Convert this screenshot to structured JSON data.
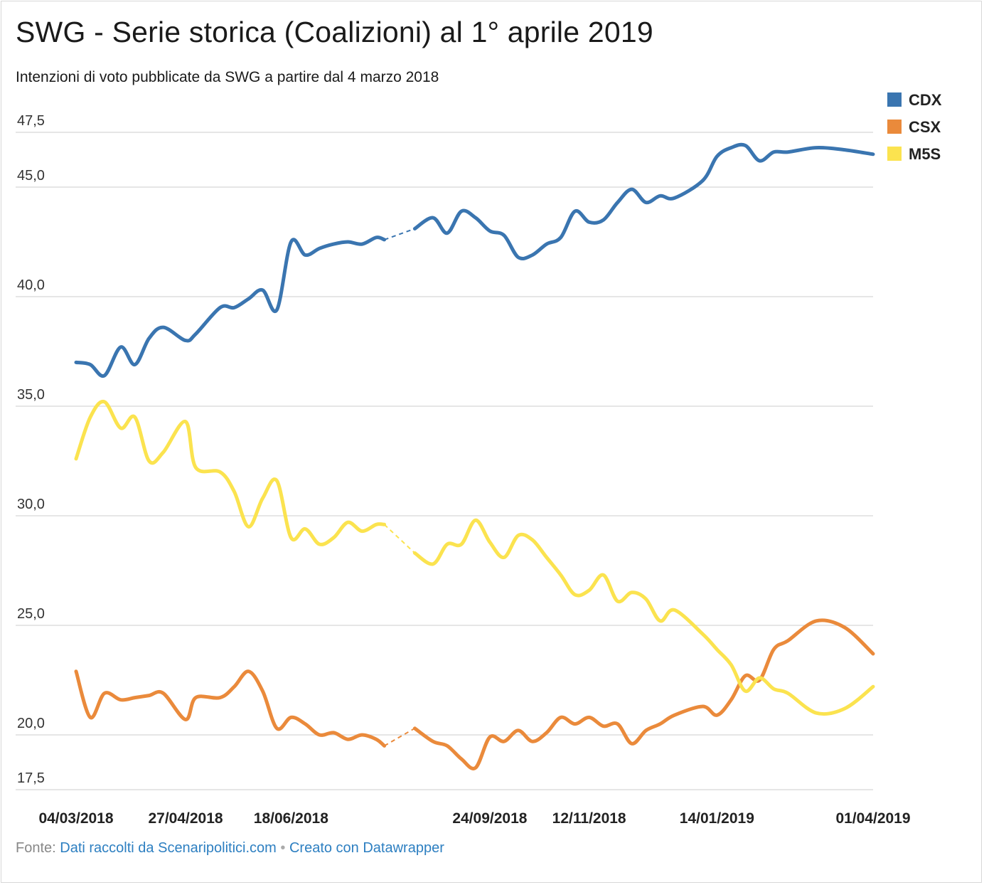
{
  "title": "SWG - Serie storica (Coalizioni) al 1° aprile 2019",
  "subtitle": "Intenzioni di voto pubblicate da SWG a partire dal 4 marzo 2018",
  "footer": {
    "prefix": "Fonte:",
    "source_link": "Dati raccolti da Scenaripolitici.com",
    "separator": "•",
    "tool_link": "Creato con Datawrapper"
  },
  "chart_data": {
    "type": "line",
    "title": "SWG - Serie storica (Coalizioni) al 1° aprile 2019",
    "ylim": [
      17.5,
      47.5
    ],
    "yticks": [
      17.5,
      20,
      25,
      30,
      35,
      40,
      45,
      47.5
    ],
    "ytick_labels": [
      "17,5",
      "20,0",
      "25,0",
      "30,0",
      "35,0",
      "40,0",
      "45,0",
      "47,5"
    ],
    "grid": true,
    "legend_position": "top-right",
    "xlim": [
      "2018-03-04",
      "2019-04-01"
    ],
    "xticks": [
      {
        "date": "2018-03-04",
        "label": "04/03/2018"
      },
      {
        "date": "2018-04-27",
        "label": "27/04/2018"
      },
      {
        "date": "2018-06-18",
        "label": "18/06/2018"
      },
      {
        "date": "2018-09-24",
        "label": "24/09/2018"
      },
      {
        "date": "2018-11-12",
        "label": "12/11/2018"
      },
      {
        "date": "2019-01-14",
        "label": "14/01/2019"
      },
      {
        "date": "2019-04-01",
        "label": "01/04/2019"
      }
    ],
    "gap": {
      "from": "2018-08-03",
      "to": "2018-08-18",
      "style": "dashed"
    },
    "series": [
      {
        "name": "CDX",
        "color": "#3a75b0",
        "points": [
          [
            "2018-03-04",
            37.0
          ],
          [
            "2018-03-11",
            36.9
          ],
          [
            "2018-03-18",
            36.4
          ],
          [
            "2018-03-26",
            37.7
          ],
          [
            "2018-04-02",
            36.9
          ],
          [
            "2018-04-09",
            38.1
          ],
          [
            "2018-04-16",
            38.6
          ],
          [
            "2018-04-27",
            38.0
          ],
          [
            "2018-05-02",
            38.3
          ],
          [
            "2018-05-14",
            39.5
          ],
          [
            "2018-05-21",
            39.5
          ],
          [
            "2018-05-28",
            39.9
          ],
          [
            "2018-06-04",
            40.3
          ],
          [
            "2018-06-11",
            39.4
          ],
          [
            "2018-06-18",
            42.5
          ],
          [
            "2018-06-25",
            41.9
          ],
          [
            "2018-07-02",
            42.2
          ],
          [
            "2018-07-09",
            42.4
          ],
          [
            "2018-07-16",
            42.5
          ],
          [
            "2018-07-23",
            42.4
          ],
          [
            "2018-07-30",
            42.7
          ],
          [
            "2018-08-03",
            42.6
          ],
          [
            "2018-08-18",
            43.1
          ],
          [
            "2018-08-27",
            43.6
          ],
          [
            "2018-09-03",
            42.9
          ],
          [
            "2018-09-10",
            43.9
          ],
          [
            "2018-09-17",
            43.6
          ],
          [
            "2018-09-24",
            43.0
          ],
          [
            "2018-10-01",
            42.8
          ],
          [
            "2018-10-08",
            41.8
          ],
          [
            "2018-10-15",
            41.9
          ],
          [
            "2018-10-22",
            42.4
          ],
          [
            "2018-10-29",
            42.7
          ],
          [
            "2018-11-05",
            43.9
          ],
          [
            "2018-11-12",
            43.4
          ],
          [
            "2018-11-19",
            43.5
          ],
          [
            "2018-11-26",
            44.3
          ],
          [
            "2018-12-03",
            44.9
          ],
          [
            "2018-12-10",
            44.3
          ],
          [
            "2018-12-17",
            44.6
          ],
          [
            "2018-12-24",
            44.5
          ],
          [
            "2019-01-07",
            45.3
          ],
          [
            "2019-01-14",
            46.4
          ],
          [
            "2019-01-21",
            46.8
          ],
          [
            "2019-01-28",
            46.9
          ],
          [
            "2019-02-04",
            46.2
          ],
          [
            "2019-02-11",
            46.6
          ],
          [
            "2019-02-18",
            46.6
          ],
          [
            "2019-03-04",
            46.8
          ],
          [
            "2019-03-18",
            46.7
          ],
          [
            "2019-04-01",
            46.5
          ]
        ]
      },
      {
        "name": "CSX",
        "color": "#ea8a3b",
        "points": [
          [
            "2018-03-04",
            22.9
          ],
          [
            "2018-03-11",
            20.8
          ],
          [
            "2018-03-18",
            21.9
          ],
          [
            "2018-03-26",
            21.6
          ],
          [
            "2018-04-02",
            21.7
          ],
          [
            "2018-04-09",
            21.8
          ],
          [
            "2018-04-16",
            21.9
          ],
          [
            "2018-04-27",
            20.7
          ],
          [
            "2018-05-02",
            21.7
          ],
          [
            "2018-05-14",
            21.7
          ],
          [
            "2018-05-21",
            22.2
          ],
          [
            "2018-05-28",
            22.9
          ],
          [
            "2018-06-04",
            22.0
          ],
          [
            "2018-06-11",
            20.3
          ],
          [
            "2018-06-18",
            20.8
          ],
          [
            "2018-06-25",
            20.5
          ],
          [
            "2018-07-02",
            20.0
          ],
          [
            "2018-07-09",
            20.1
          ],
          [
            "2018-07-16",
            19.8
          ],
          [
            "2018-07-23",
            20.0
          ],
          [
            "2018-07-30",
            19.8
          ],
          [
            "2018-08-03",
            19.5
          ],
          [
            "2018-08-18",
            20.3
          ],
          [
            "2018-08-27",
            19.7
          ],
          [
            "2018-09-03",
            19.5
          ],
          [
            "2018-09-10",
            18.9
          ],
          [
            "2018-09-17",
            18.5
          ],
          [
            "2018-09-24",
            19.9
          ],
          [
            "2018-10-01",
            19.7
          ],
          [
            "2018-10-08",
            20.2
          ],
          [
            "2018-10-15",
            19.7
          ],
          [
            "2018-10-22",
            20.1
          ],
          [
            "2018-10-29",
            20.8
          ],
          [
            "2018-11-05",
            20.5
          ],
          [
            "2018-11-12",
            20.8
          ],
          [
            "2018-11-19",
            20.4
          ],
          [
            "2018-11-26",
            20.5
          ],
          [
            "2018-12-03",
            19.6
          ],
          [
            "2018-12-10",
            20.2
          ],
          [
            "2018-12-17",
            20.5
          ],
          [
            "2018-12-24",
            20.9
          ],
          [
            "2019-01-07",
            21.3
          ],
          [
            "2019-01-14",
            20.9
          ],
          [
            "2019-01-21",
            21.6
          ],
          [
            "2019-01-28",
            22.7
          ],
          [
            "2019-02-04",
            22.5
          ],
          [
            "2019-02-11",
            23.9
          ],
          [
            "2019-02-18",
            24.3
          ],
          [
            "2019-03-04",
            25.2
          ],
          [
            "2019-03-18",
            24.9
          ],
          [
            "2019-04-01",
            23.7
          ]
        ]
      },
      {
        "name": "M5S",
        "color": "#fbe34f",
        "points": [
          [
            "2018-03-04",
            32.6
          ],
          [
            "2018-03-11",
            34.5
          ],
          [
            "2018-03-18",
            35.2
          ],
          [
            "2018-03-26",
            34.0
          ],
          [
            "2018-04-02",
            34.5
          ],
          [
            "2018-04-09",
            32.5
          ],
          [
            "2018-04-16",
            32.9
          ],
          [
            "2018-04-27",
            34.3
          ],
          [
            "2018-05-02",
            32.2
          ],
          [
            "2018-05-14",
            32.0
          ],
          [
            "2018-05-21",
            31.1
          ],
          [
            "2018-05-28",
            29.5
          ],
          [
            "2018-06-04",
            30.8
          ],
          [
            "2018-06-11",
            31.6
          ],
          [
            "2018-06-18",
            29.0
          ],
          [
            "2018-06-25",
            29.4
          ],
          [
            "2018-07-02",
            28.7
          ],
          [
            "2018-07-09",
            29.0
          ],
          [
            "2018-07-16",
            29.7
          ],
          [
            "2018-07-23",
            29.3
          ],
          [
            "2018-07-30",
            29.6
          ],
          [
            "2018-08-03",
            29.6
          ],
          [
            "2018-08-18",
            28.3
          ],
          [
            "2018-08-27",
            27.8
          ],
          [
            "2018-09-03",
            28.7
          ],
          [
            "2018-09-10",
            28.7
          ],
          [
            "2018-09-17",
            29.8
          ],
          [
            "2018-09-24",
            28.8
          ],
          [
            "2018-10-01",
            28.1
          ],
          [
            "2018-10-08",
            29.1
          ],
          [
            "2018-10-15",
            28.9
          ],
          [
            "2018-10-22",
            28.1
          ],
          [
            "2018-10-29",
            27.3
          ],
          [
            "2018-11-05",
            26.4
          ],
          [
            "2018-11-12",
            26.6
          ],
          [
            "2018-11-19",
            27.3
          ],
          [
            "2018-11-26",
            26.1
          ],
          [
            "2018-12-03",
            26.5
          ],
          [
            "2018-12-10",
            26.2
          ],
          [
            "2018-12-17",
            25.2
          ],
          [
            "2018-12-24",
            25.7
          ],
          [
            "2019-01-07",
            24.6
          ],
          [
            "2019-01-14",
            23.9
          ],
          [
            "2019-01-21",
            23.2
          ],
          [
            "2019-01-28",
            22.0
          ],
          [
            "2019-02-04",
            22.6
          ],
          [
            "2019-02-11",
            22.1
          ],
          [
            "2019-02-18",
            21.9
          ],
          [
            "2019-03-04",
            21.0
          ],
          [
            "2019-03-18",
            21.2
          ],
          [
            "2019-04-01",
            22.2
          ]
        ]
      }
    ]
  }
}
